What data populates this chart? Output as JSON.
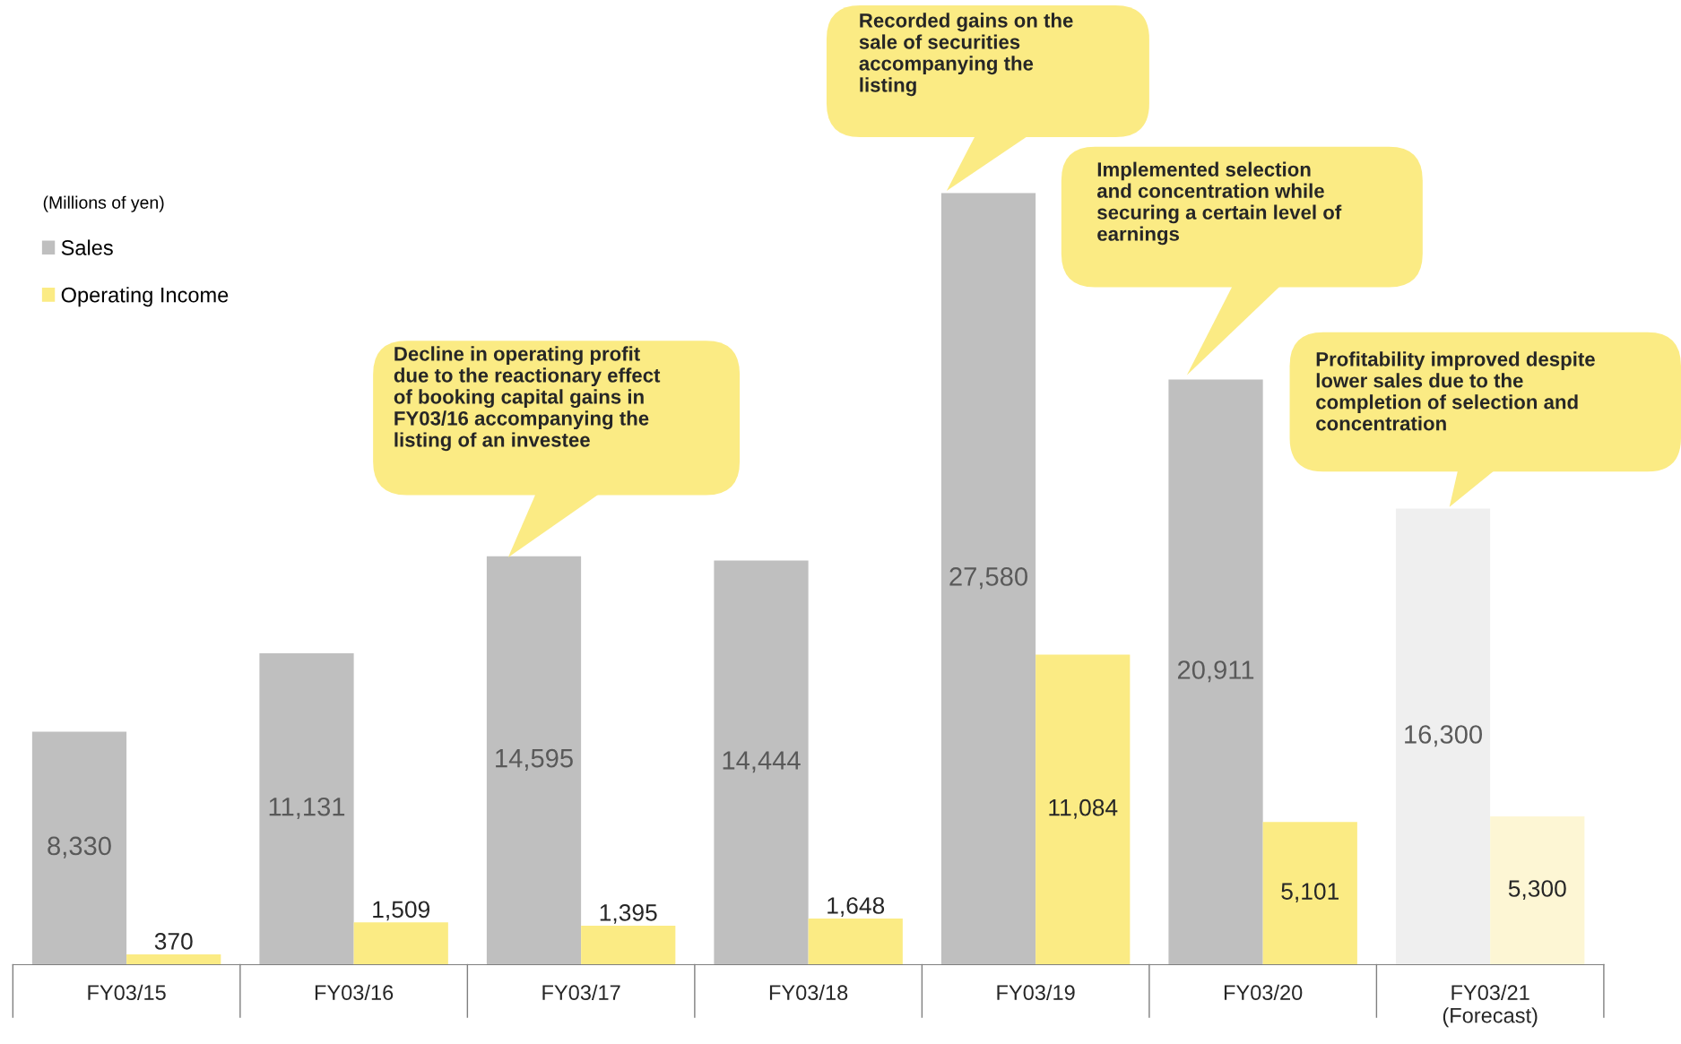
{
  "chart_data": {
    "type": "bar",
    "legend_title": "(Millions of yen)",
    "legend": "top left",
    "grid": false,
    "categories": [
      "FY03/15",
      "FY03/16",
      "FY03/17",
      "FY03/18",
      "FY03/19",
      "FY03/20",
      "FY03/21\n(Forecast)"
    ],
    "series": [
      {
        "name": "Sales",
        "color": "#bfbfbf",
        "colors": [
          "#bfbfbf",
          "#bfbfbf",
          "#bfbfbf",
          "#bfbfbf",
          "#bfbfbf",
          "#bfbfbf",
          "#efefef"
        ],
        "values": [
          8330,
          11131,
          14595,
          14444,
          27580,
          20911,
          16300
        ],
        "value_labels": [
          "8,330",
          "11,131",
          "14,595",
          "14,444",
          "27,580",
          "20,911",
          "16,300"
        ]
      },
      {
        "name": "Operating Income",
        "color": "#fbeb84",
        "colors": [
          "#fbeb84",
          "#fbeb84",
          "#fbeb84",
          "#fbeb84",
          "#fbeb84",
          "#fbeb84",
          "#fdf6d4"
        ],
        "values": [
          370,
          1509,
          1395,
          1648,
          11084,
          5101,
          5300
        ],
        "value_labels": [
          "370",
          "1,509",
          "1,395",
          "1,648",
          "11,084",
          "5,101",
          "5,300"
        ]
      }
    ],
    "annotations": [
      "Decline in operating profit\ndue to the reactionary effect\nof booking capital gains in\nFY03/16 accompanying the\nlisting of an investee",
      "Recorded gains on the\nsale of securities\naccompanying the\nlisting",
      "Implemented selection\nand concentration while\nsecuring a certain level of\nearnings",
      "Profitability improved despite\nlower sales due to the\ncompletion of selection and\nconcentration"
    ]
  }
}
